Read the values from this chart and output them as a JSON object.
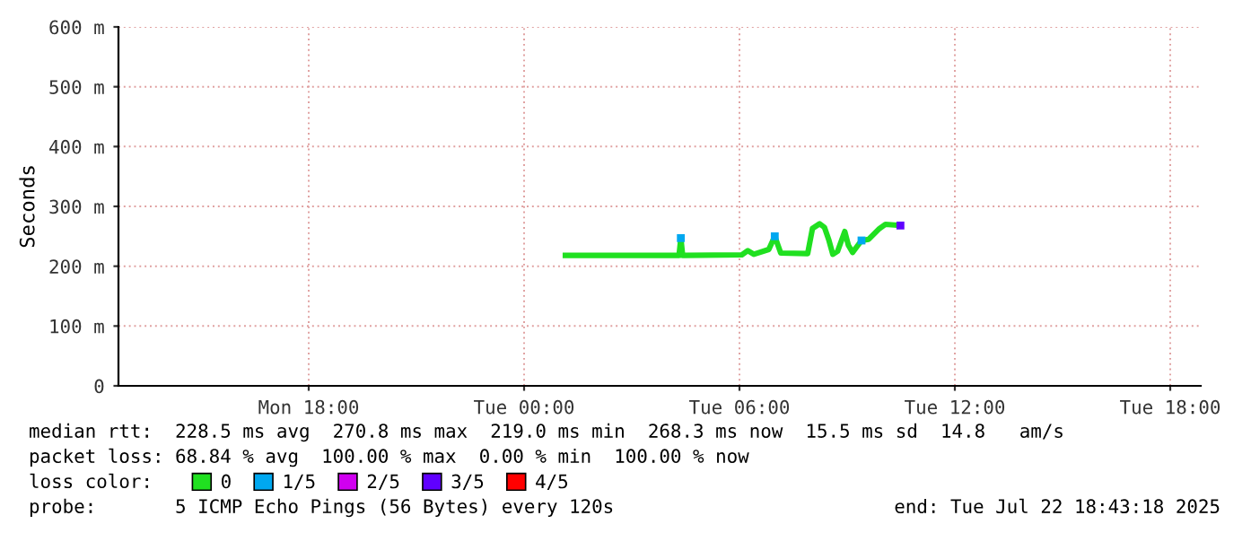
{
  "chart_data": {
    "type": "line",
    "ylabel": "Seconds",
    "xlim": [
      "2025-07-21T12:42",
      "2025-07-22T18:51"
    ],
    "xticks": [
      {
        "value": "2025-07-21T18:00",
        "label": "Mon 18:00"
      },
      {
        "value": "2025-07-22T00:00",
        "label": "Tue 00:00"
      },
      {
        "value": "2025-07-22T06:00",
        "label": "Tue 06:00"
      },
      {
        "value": "2025-07-22T12:00",
        "label": "Tue 12:00"
      },
      {
        "value": "2025-07-22T18:00",
        "label": "Tue 18:00"
      }
    ],
    "ylim": [
      0,
      600
    ],
    "yticks": [
      {
        "value": 0,
        "label": "0"
      },
      {
        "value": 100,
        "label": "100 m"
      },
      {
        "value": 200,
        "label": "200 m"
      },
      {
        "value": 300,
        "label": "300 m"
      },
      {
        "value": 400,
        "label": "400 m"
      },
      {
        "value": 500,
        "label": "500 m"
      },
      {
        "value": 600,
        "label": "600 m"
      }
    ],
    "grid": true,
    "legend": "bottom",
    "legend_title": "loss color:",
    "series": [
      {
        "name": "0",
        "color": "#20e020",
        "x": [
          "2025-07-22T01:09",
          "2025-07-22T02:54",
          "2025-07-22T04:19",
          "2025-07-22T04:22",
          "2025-07-22T04:25",
          "2025-07-22T06:04",
          "2025-07-22T06:14",
          "2025-07-22T06:24",
          "2025-07-22T06:49",
          "2025-07-22T06:59",
          "2025-07-22T07:09",
          "2025-07-22T07:54",
          "2025-07-22T08:02",
          "2025-07-22T08:14",
          "2025-07-22T08:22",
          "2025-07-22T08:29",
          "2025-07-22T08:36",
          "2025-07-22T08:44",
          "2025-07-22T08:56",
          "2025-07-22T09:02",
          "2025-07-22T09:09",
          "2025-07-22T09:24",
          "2025-07-22T09:36",
          "2025-07-22T09:54",
          "2025-07-22T10:04",
          "2025-07-22T10:29"
        ],
        "values": [
          218,
          218,
          218,
          247,
          218,
          219,
          226,
          220,
          228,
          250,
          222,
          221,
          263,
          271,
          265,
          245,
          220,
          225,
          258,
          235,
          223,
          243,
          245,
          263,
          270,
          268
        ]
      },
      {
        "name": "1/5",
        "color": "#00a8f0",
        "type": "scatter",
        "x": [
          "2025-07-22T04:22",
          "2025-07-22T06:59",
          "2025-07-22T09:24"
        ],
        "values": [
          247,
          250,
          243
        ]
      },
      {
        "name": "2/5",
        "color": "#d000f0",
        "type": "scatter"
      },
      {
        "name": "3/5",
        "color": "#6000ff",
        "type": "scatter",
        "x": [
          "2025-07-22T10:29"
        ],
        "values": [
          268
        ]
      },
      {
        "name": "4/5",
        "color": "#ff0000",
        "type": "scatter"
      }
    ],
    "annotations": [
      "median rtt:  228.5 ms avg  270.8 ms max  219.0 ms min  268.3 ms now  15.5 ms sd  14.8   am/s",
      "packet loss: 68.84 % avg  100.00 % max  0.00 % min  100.00 % now",
      "probe:       5 ICMP Echo Pings (56 Bytes) every 120s",
      "end: Tue Jul 22 18:43:18 2025"
    ]
  }
}
